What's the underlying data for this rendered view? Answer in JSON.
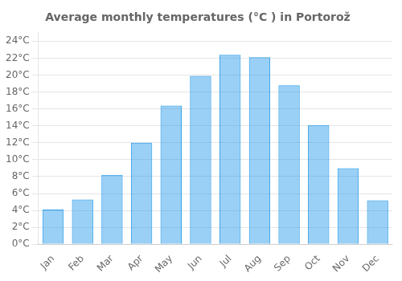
{
  "chart_data": {
    "type": "bar",
    "title": "Average monthly temperatures (°C ) in Portorož",
    "categories": [
      "Jan",
      "Feb",
      "Mar",
      "Apr",
      "May",
      "Jun",
      "Jul",
      "Aug",
      "Sep",
      "Oct",
      "Nov",
      "Dec"
    ],
    "values": [
      4.1,
      5.3,
      8.2,
      12.0,
      16.4,
      19.9,
      22.4,
      22.1,
      18.8,
      14.1,
      9.0,
      5.2
    ],
    "ylim": [
      0,
      25
    ],
    "yticks": [
      {
        "value": 0,
        "label": "0°C"
      },
      {
        "value": 2,
        "label": "2°C"
      },
      {
        "value": 4,
        "label": "4°C"
      },
      {
        "value": 6,
        "label": "6°C"
      },
      {
        "value": 8,
        "label": "8°C"
      },
      {
        "value": 10,
        "label": "10°C"
      },
      {
        "value": 12,
        "label": "12°C"
      },
      {
        "value": 14,
        "label": "14°C"
      },
      {
        "value": 16,
        "label": "16°C"
      },
      {
        "value": 18,
        "label": "18°C"
      },
      {
        "value": 20,
        "label": "20°C"
      },
      {
        "value": 22,
        "label": "22°C"
      },
      {
        "value": 24,
        "label": "24°C"
      }
    ],
    "grid": true
  }
}
